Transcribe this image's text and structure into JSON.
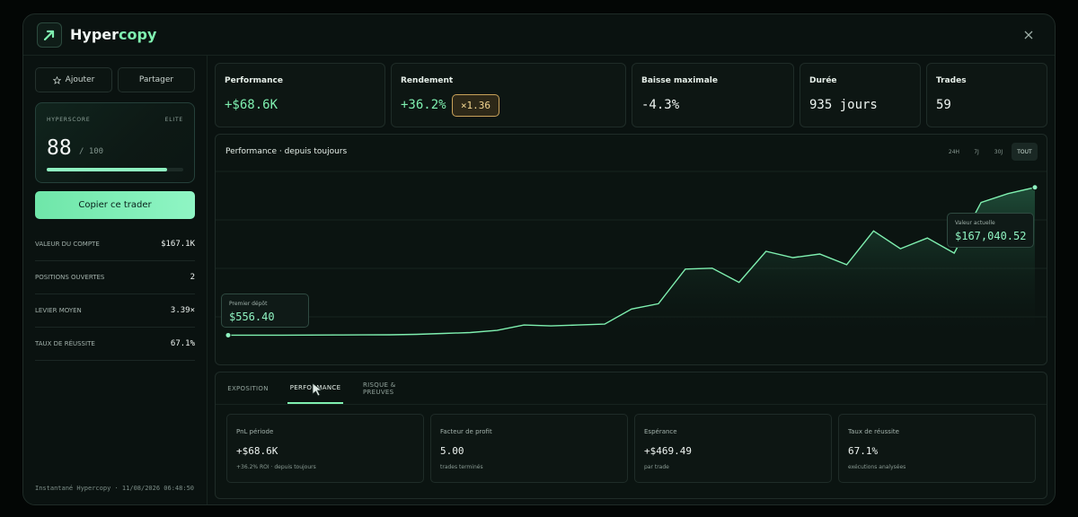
{
  "app": {
    "name_main": "Hyper",
    "name_accent": "copy",
    "close_icon": "close-icon",
    "logo_icon": "arrow-up-right-icon"
  },
  "sidebar": {
    "add_label": "Ajouter",
    "share_label": "Partager",
    "hyperscore": {
      "label": "HYPERSCORE",
      "tier": "ELITE",
      "score": "88",
      "max": "/ 100",
      "progress_fraction": 0.88
    },
    "copy_button": "Copier ce trader",
    "stats": [
      {
        "label": "VALEUR DU COMPTE",
        "value": "$167.1K"
      },
      {
        "label": "POSITIONS OUVERTES",
        "value": "2"
      },
      {
        "label": "LEVIER MOYEN",
        "value": "3.39×"
      },
      {
        "label": "TAUX DE RÉUSSITE",
        "value": "67.1%"
      }
    ],
    "snapshot": "Instantané Hypercopy · 11/08/2026 06:48:50"
  },
  "metrics": [
    {
      "label": "Performance",
      "value": "+$68.6K"
    },
    {
      "label": "Rendement",
      "value": "+36.2%",
      "badge": "×1.36"
    },
    {
      "label": "Baisse maximale",
      "value": "-4.3%"
    },
    {
      "label": "Durée",
      "value": "935 jours"
    },
    {
      "label": "Trades",
      "value": "59"
    }
  ],
  "chart": {
    "title": "Performance · depuis toujours",
    "ranges": [
      "24H",
      "7J",
      "30J",
      "TOUT"
    ],
    "active_range": "TOUT",
    "first_label": "Premier dépôt",
    "first_value": "$556.40",
    "last_label": "Valeur actuelle",
    "last_value": "$167,040.52",
    "line_color": "#7ff0b0"
  },
  "chart_data": {
    "type": "area",
    "title": "Performance · depuis toujours",
    "xlabel": "",
    "ylabel": "",
    "grid": true,
    "x": [
      0,
      1,
      2,
      3,
      4,
      5,
      6,
      7,
      8,
      9,
      10,
      11,
      12,
      13,
      14,
      15,
      16,
      17,
      18,
      19,
      20,
      21,
      22,
      23,
      24,
      25,
      26,
      27,
      28,
      29,
      30
    ],
    "values": [
      556.4,
      560,
      600,
      700,
      800,
      900,
      1000,
      1500,
      2500,
      3500,
      6000,
      12000,
      11000,
      12000,
      13000,
      30000,
      36000,
      75000,
      76000,
      60000,
      95000,
      88000,
      92000,
      80000,
      118000,
      98000,
      110000,
      93000,
      150000,
      160000,
      167040.52
    ],
    "ylim": [
      0,
      185000
    ]
  },
  "tabs": {
    "items": [
      "EXPOSITION",
      "PERFORMANCE",
      "RISQUE & PREUVES"
    ],
    "active": "PERFORMANCE"
  },
  "kpis": [
    {
      "label": "PnL période",
      "value": "+$68.6K",
      "sub": "+36.2% ROI · depuis toujours"
    },
    {
      "label": "Facteur de profit",
      "value": "5.00",
      "sub": "trades terminés"
    },
    {
      "label": "Espérance",
      "value": "+$469.49",
      "sub": "par trade"
    },
    {
      "label": "Taux de réussite",
      "value": "67.1%",
      "sub": "exécutions analysées"
    }
  ]
}
